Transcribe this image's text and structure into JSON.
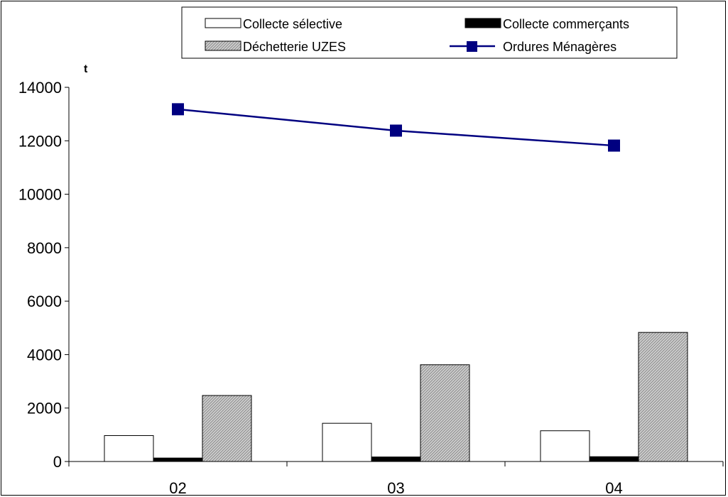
{
  "chart_data": {
    "type": "bar",
    "categories": [
      "02",
      "03",
      "04"
    ],
    "ylabel": "t",
    "ylim": [
      0,
      14000
    ],
    "yticks": [
      0,
      2000,
      4000,
      6000,
      8000,
      10000,
      12000,
      14000
    ],
    "grid": false,
    "legend_position": "top-center",
    "series": [
      {
        "name": "Collecte sélective",
        "kind": "bar",
        "fill": "white",
        "values": [
          970,
          1430,
          1150
        ]
      },
      {
        "name": "Collecte commerçants",
        "kind": "bar",
        "fill": "black",
        "values": [
          130,
          170,
          180
        ]
      },
      {
        "name": "Déchetterie UZES",
        "kind": "bar",
        "fill": "hatched-gray",
        "values": [
          2470,
          3620,
          4830
        ]
      },
      {
        "name": "Ordures Ménagères",
        "kind": "line",
        "color": "#000080",
        "marker": "square",
        "values": [
          13180,
          12380,
          11820
        ]
      }
    ]
  }
}
